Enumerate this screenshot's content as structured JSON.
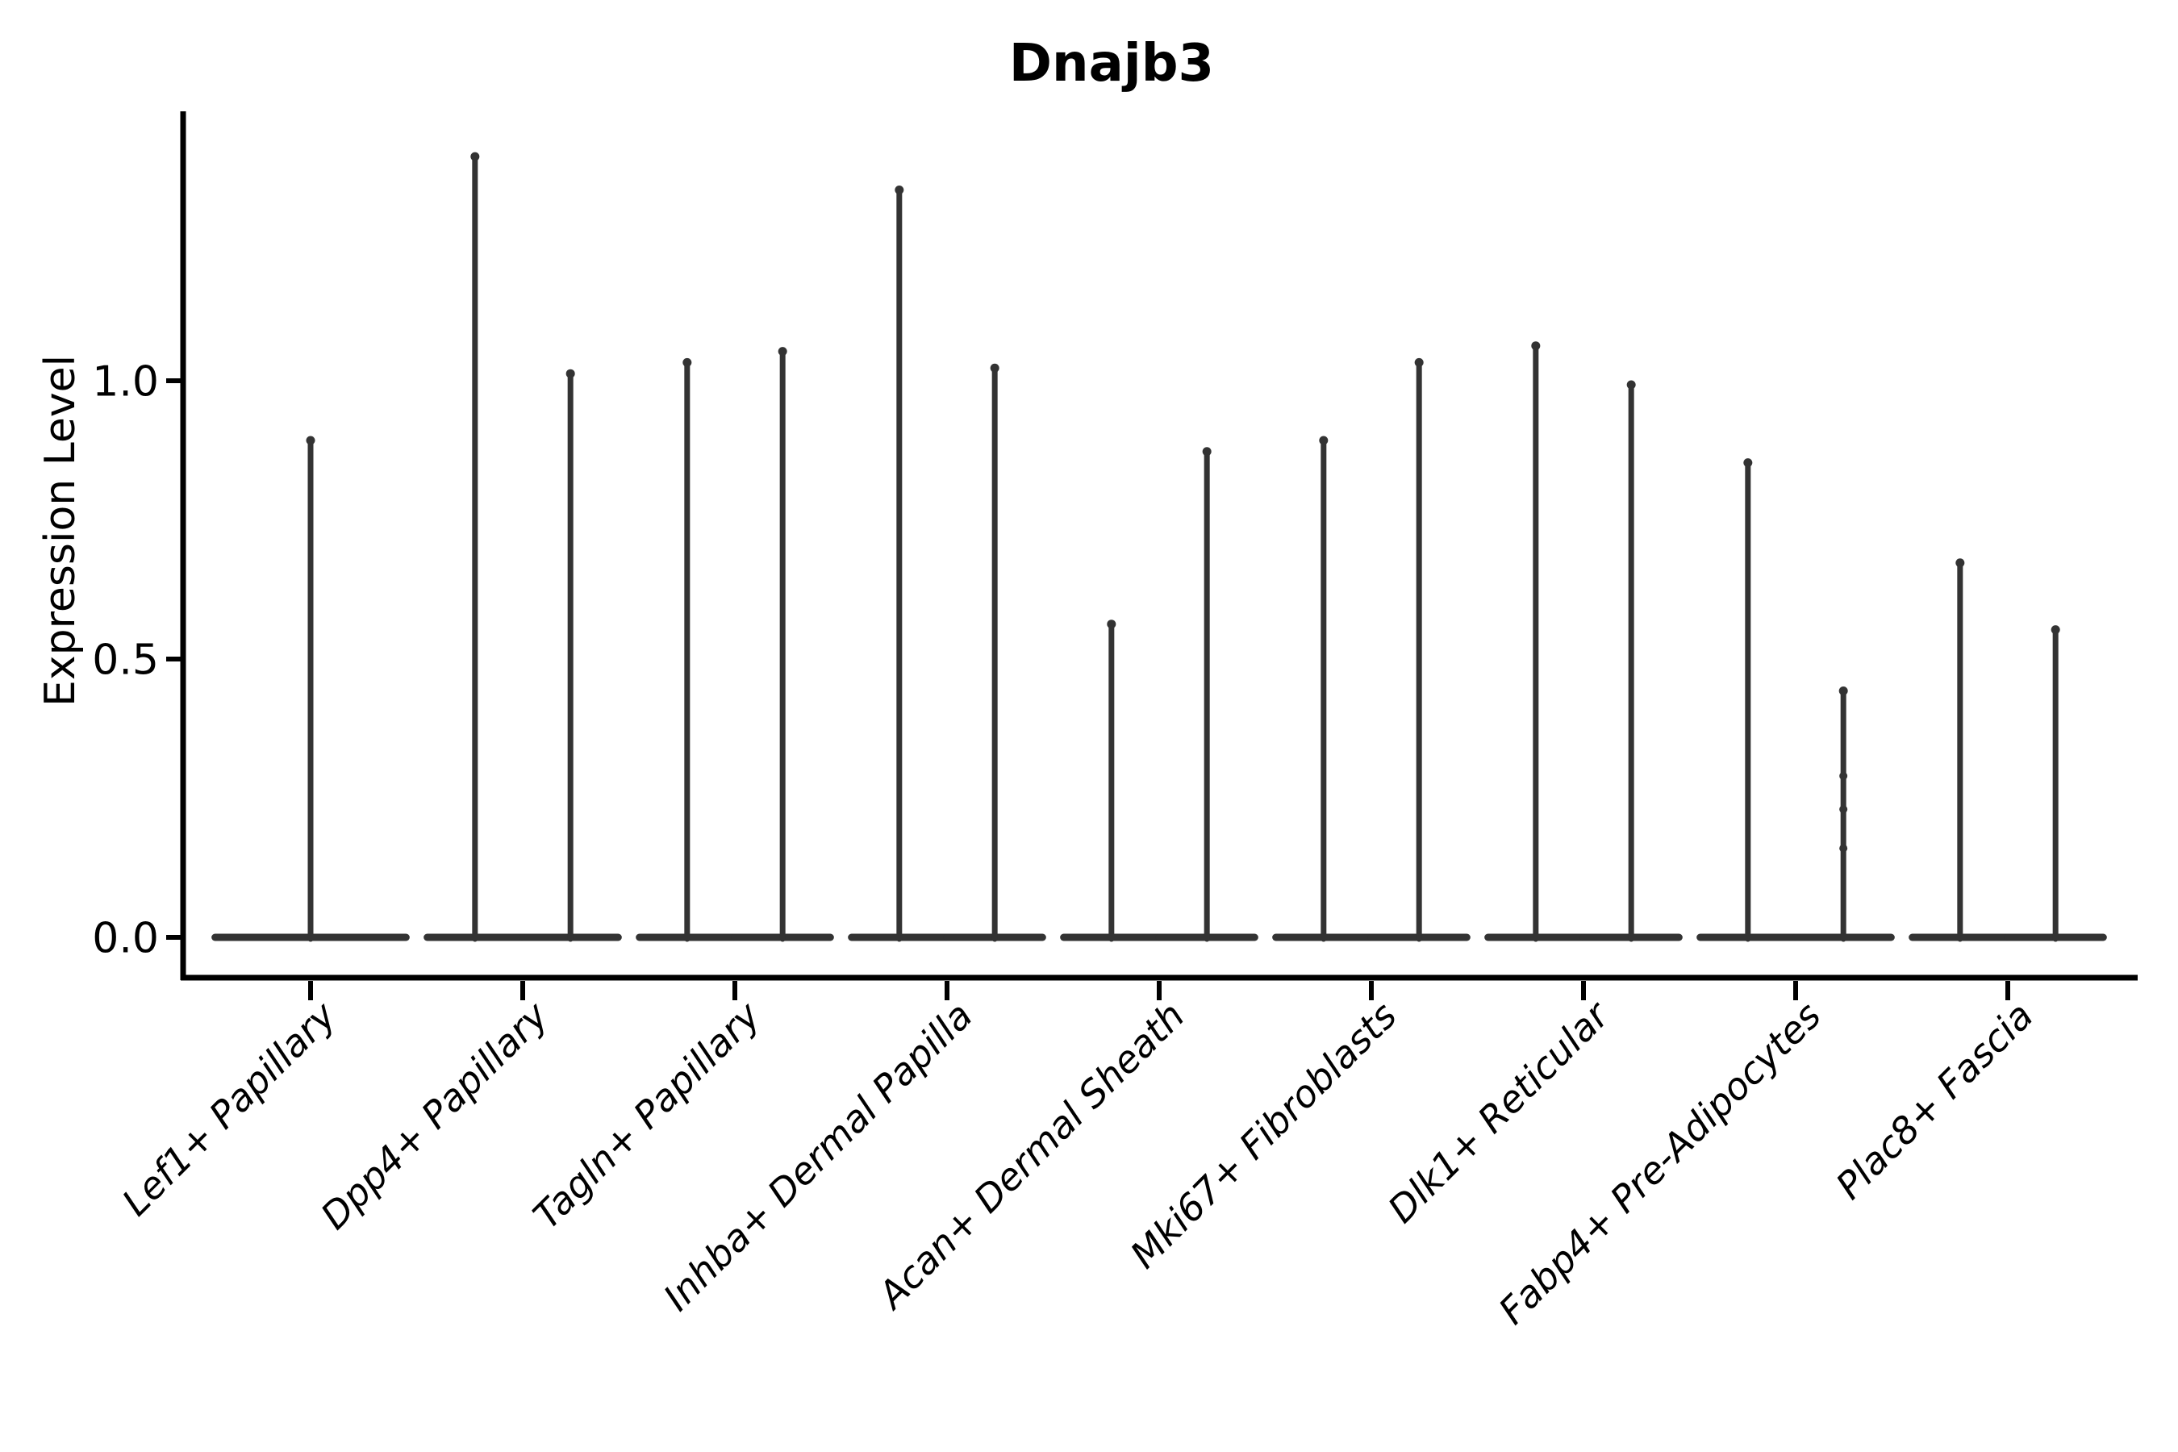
{
  "figure": {
    "title": "Dnajb3",
    "ylabel": "Expression Level"
  },
  "chart_data": {
    "type": "violin",
    "title": "Dnajb3",
    "xlabel": "",
    "ylabel": "Expression Level",
    "ytick_labels": [
      "0.0",
      "0.5",
      "1.0"
    ],
    "ytick_values": [
      0,
      0.5,
      1.0
    ],
    "ylim": [
      -0.07,
      1.48
    ],
    "grid": false,
    "legend": null,
    "background": "#ffffff",
    "colors": {
      "violin": "#333333",
      "axis": "#000000",
      "text": "#000000"
    },
    "categories": [
      "Lef1+ Papillary",
      "Dpp4+ Papillary",
      "Tagln+ Papillary",
      "Inhba+ Dermal Papilla",
      "Acan+ Dermal Sheath",
      "Mki67+ Fibroblasts",
      "Dlk1+ Reticular",
      "Fabp4+ Pre-Adipocytes",
      "Plac8+ Fascia"
    ],
    "note": "Zero-inflated expression violins: each violin collapses to a flat base at 0 with a thin vertical spike reaching its maximum expression value.",
    "violins": [
      {
        "category": "Lef1+ Papillary",
        "items": [
          {
            "offset": 0,
            "width": 0.9,
            "max": 0.9
          }
        ]
      },
      {
        "category": "Dpp4+ Papillary",
        "items": [
          {
            "offset": -0.225,
            "width": 0.45,
            "max": 1.41
          },
          {
            "offset": 0.225,
            "width": 0.45,
            "max": 1.02
          }
        ]
      },
      {
        "category": "Tagln+ Papillary",
        "items": [
          {
            "offset": -0.225,
            "width": 0.45,
            "max": 1.04
          },
          {
            "offset": 0.225,
            "width": 0.45,
            "max": 1.06
          }
        ]
      },
      {
        "category": "Inhba+ Dermal Papilla",
        "items": [
          {
            "offset": -0.225,
            "width": 0.45,
            "max": 1.35
          },
          {
            "offset": 0.225,
            "width": 0.45,
            "max": 1.03
          }
        ]
      },
      {
        "category": "Acan+ Dermal Sheath",
        "items": [
          {
            "offset": -0.225,
            "width": 0.45,
            "max": 0.57
          },
          {
            "offset": 0.225,
            "width": 0.45,
            "max": 0.88
          }
        ]
      },
      {
        "category": "Mki67+ Fibroblasts",
        "items": [
          {
            "offset": -0.225,
            "width": 0.45,
            "max": 0.9
          },
          {
            "offset": 0.225,
            "width": 0.45,
            "max": 1.04
          }
        ]
      },
      {
        "category": "Dlk1+ Reticular",
        "items": [
          {
            "offset": -0.225,
            "width": 0.45,
            "max": 1.07
          },
          {
            "offset": 0.225,
            "width": 0.45,
            "max": 1.0
          }
        ]
      },
      {
        "category": "Fabp4+ Pre-Adipocytes",
        "items": [
          {
            "offset": -0.225,
            "width": 0.45,
            "max": 0.86
          },
          {
            "offset": 0.225,
            "width": 0.45,
            "max": 0.45,
            "bumps": [
              0.29,
              0.23,
              0.16
            ]
          }
        ]
      },
      {
        "category": "Plac8+ Fascia",
        "items": [
          {
            "offset": -0.225,
            "width": 0.45,
            "max": 0.68
          },
          {
            "offset": 0.225,
            "width": 0.45,
            "max": 0.56
          }
        ]
      }
    ]
  }
}
